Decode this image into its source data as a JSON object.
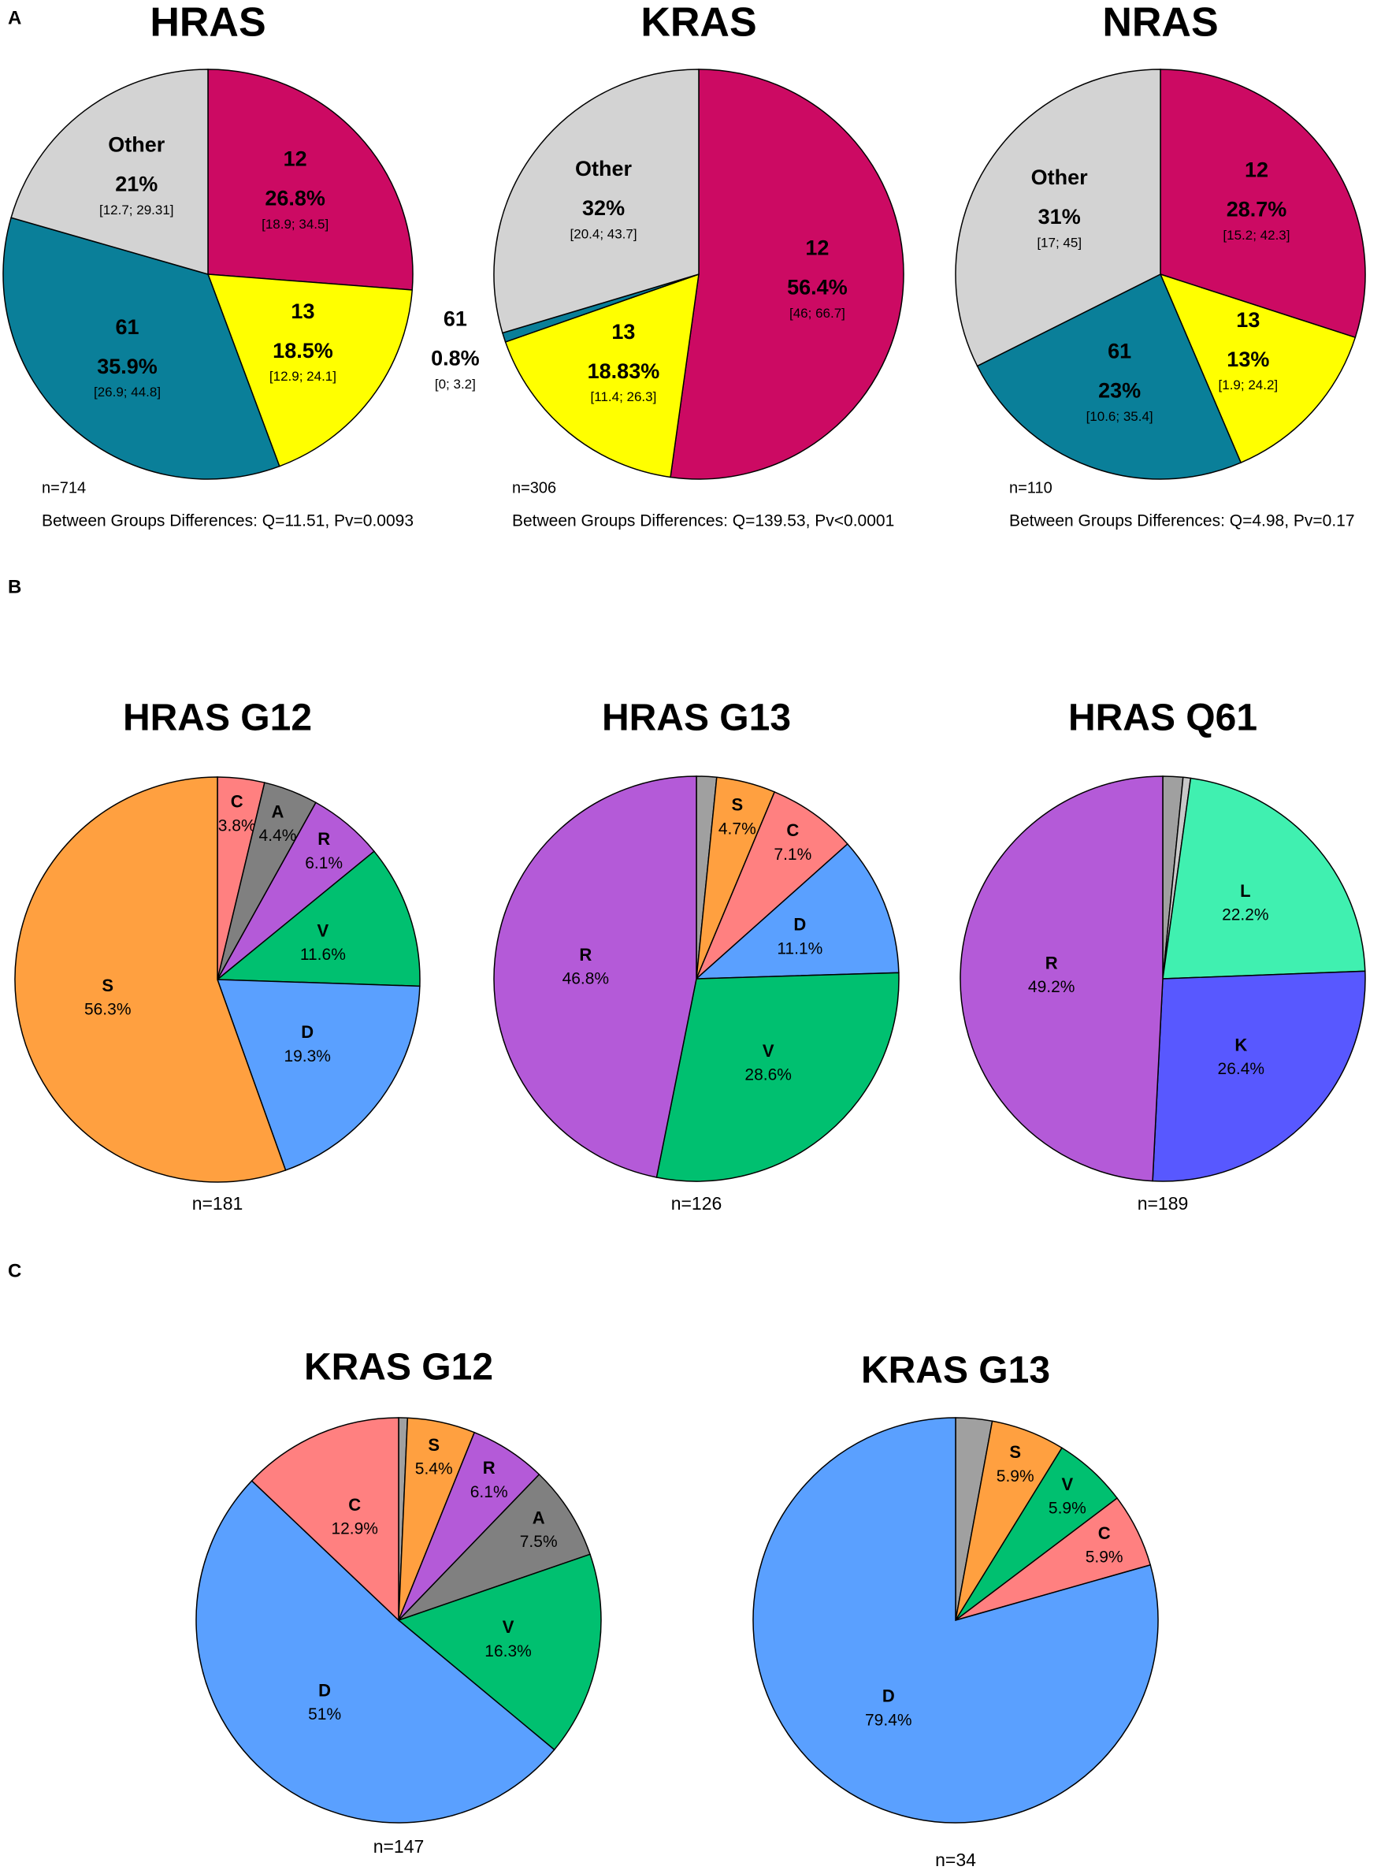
{
  "panel_labels": [
    "A",
    "B",
    "C"
  ],
  "chart_data": [
    {
      "type": "pie",
      "title": "HRAS",
      "categories": [
        "12",
        "13",
        "61",
        "Other"
      ],
      "values": [
        26.8,
        18.5,
        35.9,
        21
      ],
      "value_labels": [
        "26.8%",
        "18.5%",
        "35.9%",
        "21%"
      ],
      "ci_labels": [
        "[18.9; 34.5]",
        "[12.9; 24.1]",
        "[26.9; 44.8]",
        "[12.7; 29.31]"
      ],
      "colors": [
        "#cc0a63",
        "#ffff00",
        "#0a7f99",
        "#d3d3d3"
      ],
      "n_label": "n=714",
      "test_label": "Between Groups Differences: Q=11.51, Pv=0.0093"
    },
    {
      "type": "pie",
      "title": "KRAS",
      "categories": [
        "12",
        "13",
        "61",
        "Other"
      ],
      "values": [
        56.4,
        18.83,
        0.8,
        32
      ],
      "value_labels": [
        "56.4%",
        "18.83%",
        "0.8%",
        "32%"
      ],
      "ci_labels": [
        "[46; 66.7]",
        "[11.4; 26.3]",
        "[0; 3.2]",
        "[20.4; 43.7]"
      ],
      "colors": [
        "#cc0a63",
        "#ffff00",
        "#0a7f99",
        "#d3d3d3"
      ],
      "n_label": "n=306",
      "test_label": "Between Groups Differences: Q=139.53, Pv<0.0001"
    },
    {
      "type": "pie",
      "title": "NRAS",
      "categories": [
        "12",
        "13",
        "61",
        "Other"
      ],
      "values": [
        28.7,
        13,
        23,
        31
      ],
      "value_labels": [
        "28.7%",
        "13%",
        "23%",
        "31%"
      ],
      "ci_labels": [
        "[15.2; 42.3]",
        "[1.9; 24.2]",
        "[10.6; 35.4]",
        "[17; 45]"
      ],
      "colors": [
        "#cc0a63",
        "#ffff00",
        "#0a7f99",
        "#d3d3d3"
      ],
      "n_label": "n=110",
      "test_label": "Between Groups Differences: Q=4.98, Pv=0.17"
    },
    {
      "type": "pie",
      "title": "HRAS G12",
      "categories": [
        "C",
        "A",
        "R",
        "V",
        "D",
        "S"
      ],
      "values": [
        3.8,
        4.4,
        6.1,
        11.6,
        19.3,
        56.3
      ],
      "value_labels": [
        "3.8%",
        "4.4%",
        "6.1%",
        "11.6%",
        "19.3%",
        "56.3%"
      ],
      "colors": [
        "#ff8080",
        "#808080",
        "#b45ad8",
        "#00c070",
        "#5aa0ff",
        "#ffa040"
      ],
      "n_label": "n=181"
    },
    {
      "type": "pie",
      "title": "HRAS G13",
      "categories": [
        null,
        "S",
        "C",
        "D",
        "V",
        "R"
      ],
      "values": [
        1.6,
        4.7,
        7.1,
        11.1,
        28.6,
        46.8
      ],
      "value_labels": [
        null,
        "4.7%",
        "7.1%",
        "11.1%",
        "28.6%",
        "46.8%"
      ],
      "colors": [
        "#a0a0a0",
        "#ffa040",
        "#ff8080",
        "#5aa0ff",
        "#00c070",
        "#b45ad8"
      ],
      "n_label": "n=126"
    },
    {
      "type": "pie",
      "title": "HRAS Q61",
      "categories": [
        null,
        null,
        "L",
        "K",
        "R"
      ],
      "values": [
        1.6,
        0.6,
        22.2,
        26.4,
        49.2
      ],
      "value_labels": [
        null,
        null,
        "22.2%",
        "26.4%",
        "49.2%"
      ],
      "colors": [
        "#a0a0a0",
        "#c8c8c8",
        "#40f0b0",
        "#5858ff",
        "#b45ad8"
      ],
      "n_label": "n=189"
    },
    {
      "type": "pie",
      "title": "KRAS G12",
      "categories": [
        null,
        "S",
        "R",
        "A",
        "V",
        "D",
        "C"
      ],
      "values": [
        0.7,
        5.4,
        6.1,
        7.5,
        16.3,
        51,
        12.9
      ],
      "value_labels": [
        null,
        "5.4%",
        "6.1%",
        "7.5%",
        "16.3%",
        "51%",
        "12.9%"
      ],
      "colors": [
        "#a0a0a0",
        "#ffa040",
        "#b45ad8",
        "#808080",
        "#00c070",
        "#5aa0ff",
        "#ff8080"
      ],
      "n_label": "n=147"
    },
    {
      "type": "pie",
      "title": "KRAS G13",
      "categories": [
        null,
        "S",
        "V",
        "C",
        "D"
      ],
      "values": [
        2.9,
        5.9,
        5.9,
        5.9,
        79.4
      ],
      "value_labels": [
        null,
        "5.9%",
        "5.9%",
        "5.9%",
        "79.4%"
      ],
      "colors": [
        "#a0a0a0",
        "#ffa040",
        "#00c070",
        "#ff8080",
        "#5aa0ff"
      ],
      "n_label": "n=34"
    }
  ]
}
